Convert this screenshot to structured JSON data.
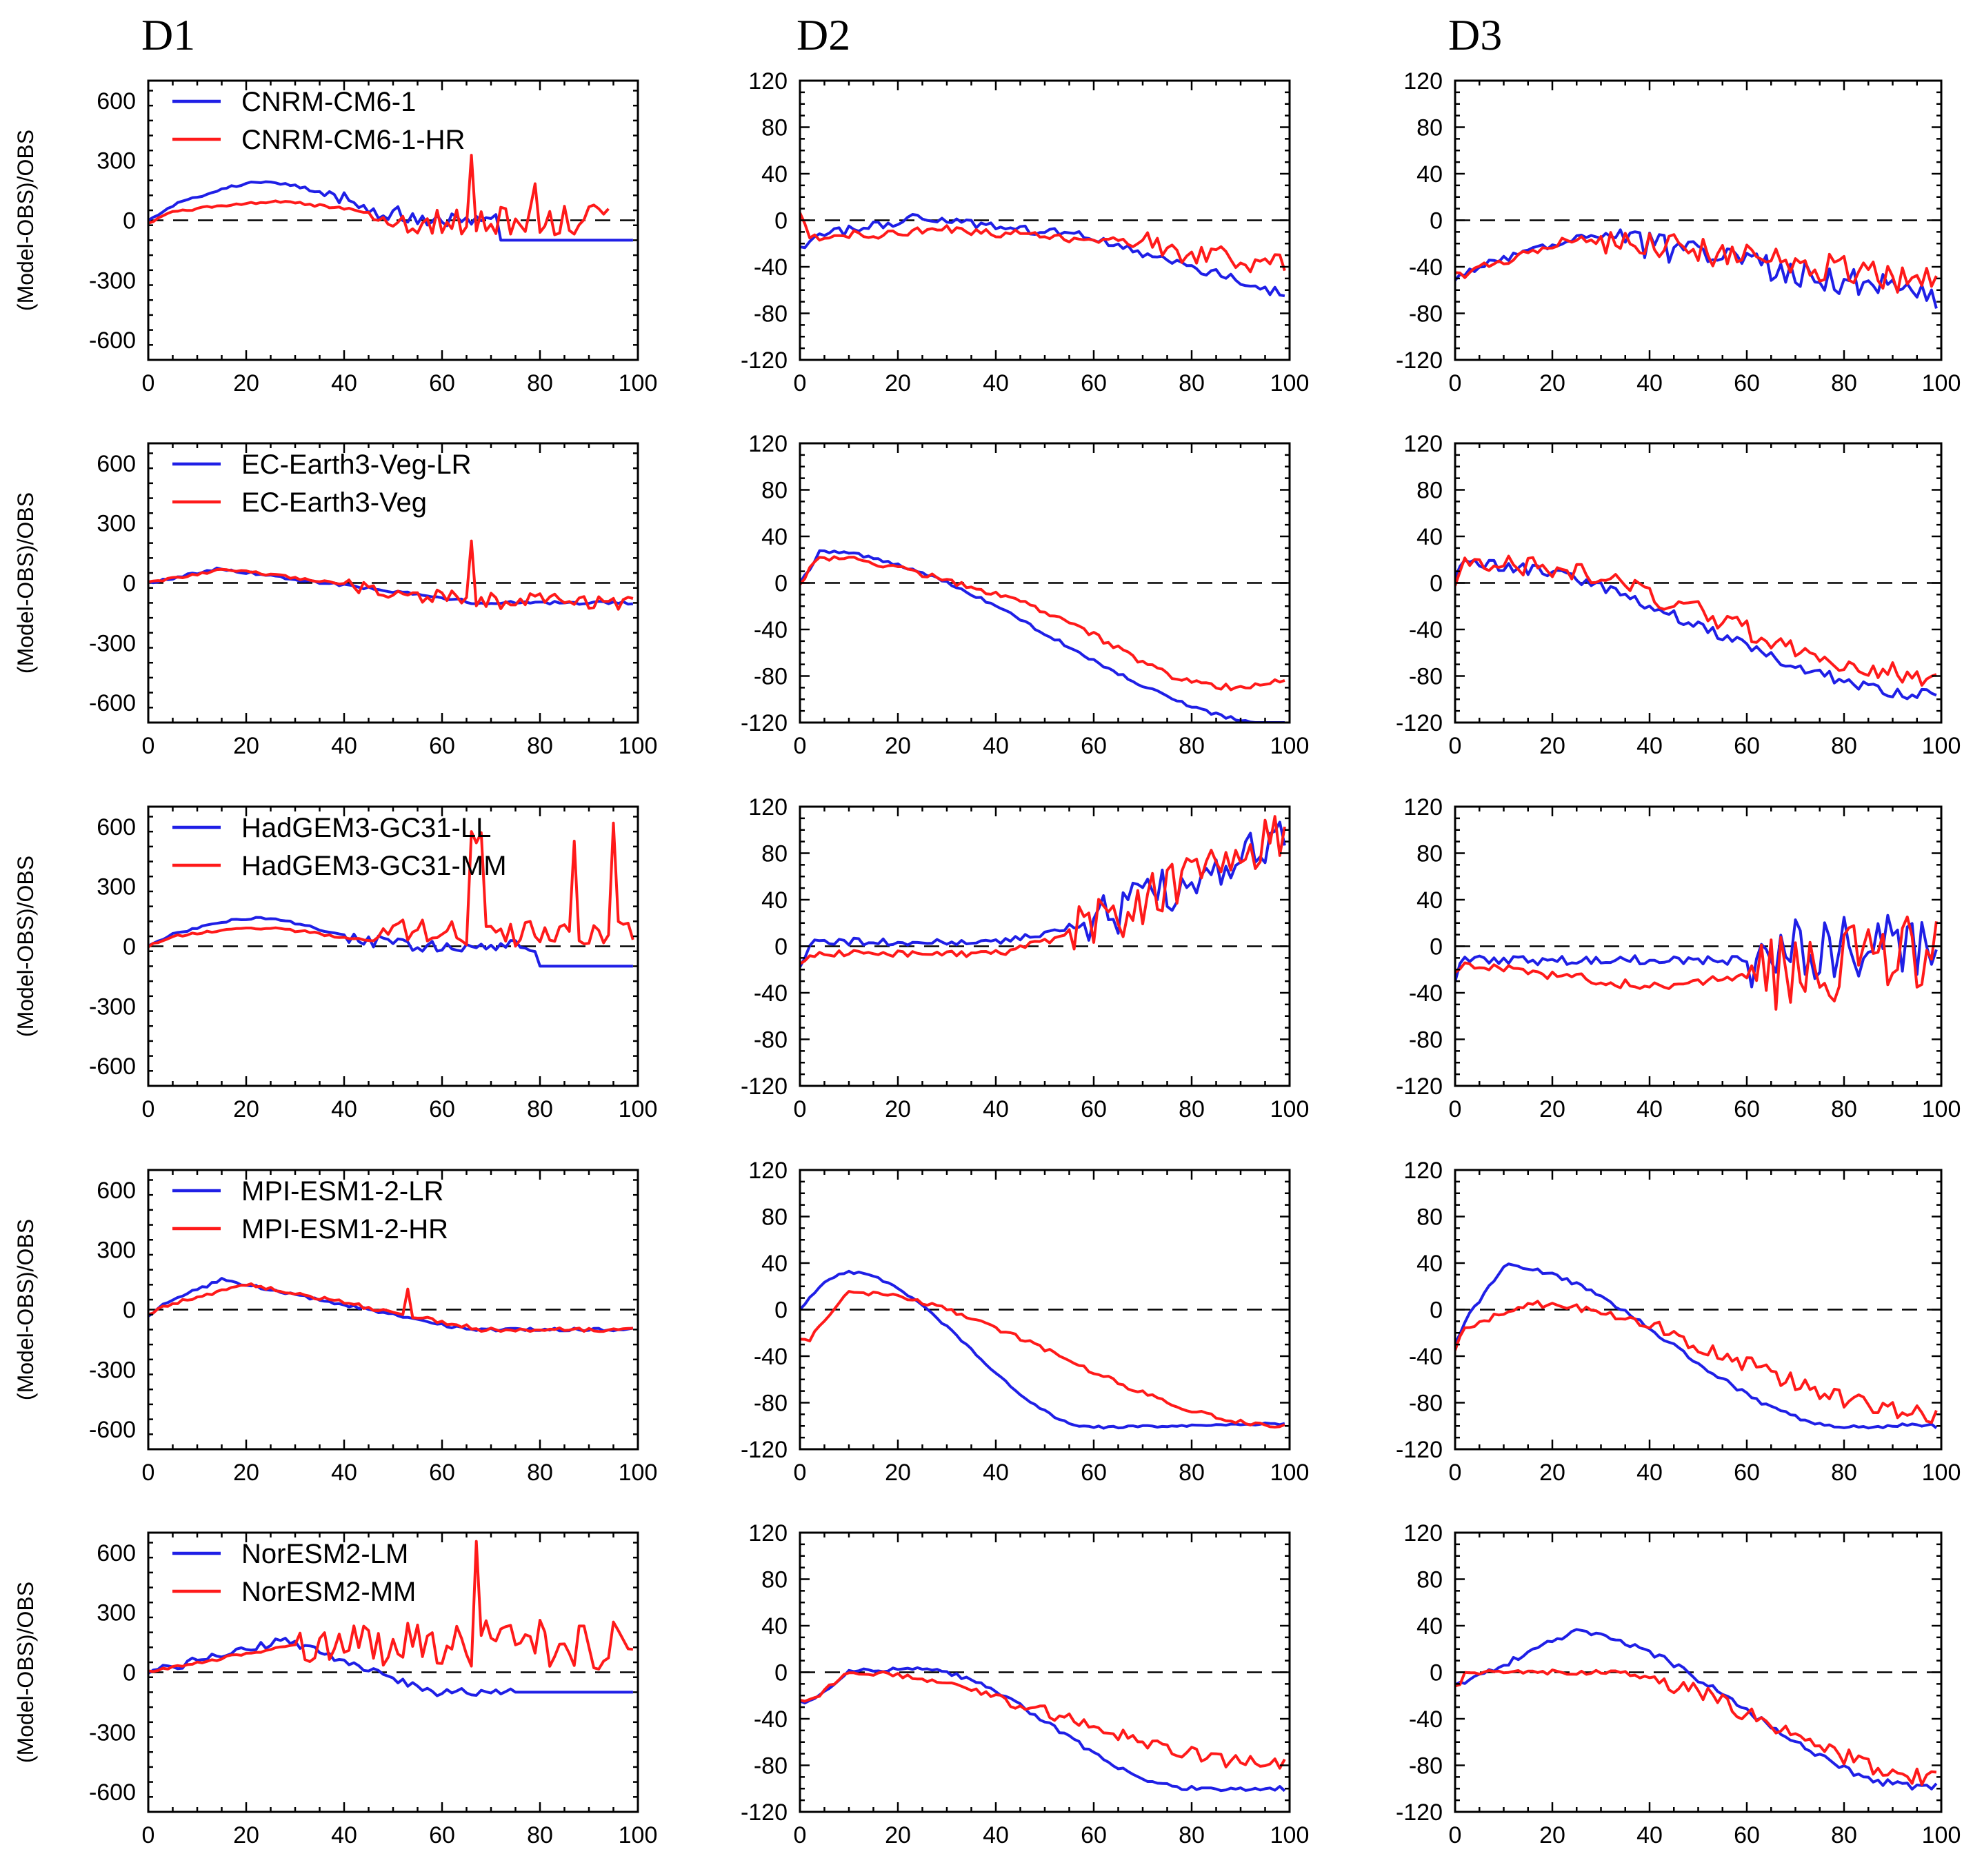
{
  "figure": {
    "columns": [
      "D1",
      "D2",
      "D3"
    ],
    "ylabel": "(Model-OBS)/OBS"
  },
  "colors": {
    "first_model": "#1f1fe6",
    "second_model": "#ff1a1a",
    "zero_line": "#000000"
  },
  "chart_data": [
    {
      "type": "line",
      "panel": "CNRM-CM6-1 D1",
      "column": "D1",
      "ylabel": "(Model-OBS)/OBS",
      "xlim": [
        0,
        100
      ],
      "ylim": [
        -700,
        700
      ],
      "xticks": [
        0,
        20,
        40,
        60,
        80,
        100
      ],
      "yticks": [
        -600,
        -300,
        0,
        300,
        600
      ],
      "legend": "top-left",
      "series": [
        {
          "name": "CNRM-CM6-1",
          "color": "blue",
          "shape": "sd1_cnrm",
          "amp": 1,
          "seed": 1
        },
        {
          "name": "CNRM-CM6-1-HR",
          "color": "red",
          "shape": "sd1_cnrm_hr",
          "amp": 1,
          "seed": 2
        }
      ]
    },
    {
      "type": "line",
      "panel": "CNRM-CM6-1 D2",
      "column": "D2",
      "xlim": [
        0,
        100
      ],
      "ylim": [
        -120,
        120
      ],
      "xticks": [
        0,
        20,
        40,
        60,
        80,
        100
      ],
      "yticks": [
        -120,
        -80,
        -40,
        0,
        40,
        80,
        120
      ],
      "series": [
        {
          "name": "CNRM-CM6-1",
          "color": "blue",
          "shape": "d2_cnrm_lr",
          "amp": 1,
          "seed": 3
        },
        {
          "name": "CNRM-CM6-1-HR",
          "color": "red",
          "shape": "d2_cnrm_hr",
          "amp": 1,
          "seed": 4
        }
      ]
    },
    {
      "type": "line",
      "panel": "CNRM-CM6-1 D3",
      "column": "D3",
      "xlim": [
        0,
        100
      ],
      "ylim": [
        -120,
        120
      ],
      "xticks": [
        0,
        20,
        40,
        60,
        80,
        100
      ],
      "yticks": [
        -120,
        -80,
        -40,
        0,
        40,
        80,
        120
      ],
      "series": [
        {
          "name": "CNRM-CM6-1",
          "color": "blue",
          "shape": "d3_cnrm_lr",
          "amp": 1,
          "seed": 5
        },
        {
          "name": "CNRM-CM6-1-HR",
          "color": "red",
          "shape": "d3_cnrm_hr",
          "amp": 1,
          "seed": 6
        }
      ]
    },
    {
      "type": "line",
      "panel": "EC-Earth3 D1",
      "column": "D1",
      "ylabel": "(Model-OBS)/OBS",
      "xlim": [
        0,
        100
      ],
      "ylim": [
        -700,
        700
      ],
      "xticks": [
        0,
        20,
        40,
        60,
        80,
        100
      ],
      "yticks": [
        -600,
        -300,
        0,
        300,
        600
      ],
      "legend": "top-left",
      "series": [
        {
          "name": "EC-Earth3-Veg-LR",
          "color": "blue",
          "shape": "sd1_ec_lr",
          "amp": 1,
          "seed": 7
        },
        {
          "name": "EC-Earth3-Veg",
          "color": "red",
          "shape": "sd1_ec_hr",
          "amp": 1,
          "seed": 8
        }
      ]
    },
    {
      "type": "line",
      "panel": "EC-Earth3 D2",
      "column": "D2",
      "xlim": [
        0,
        100
      ],
      "ylim": [
        -120,
        120
      ],
      "xticks": [
        0,
        20,
        40,
        60,
        80,
        100
      ],
      "yticks": [
        -120,
        -80,
        -40,
        0,
        40,
        80,
        120
      ],
      "series": [
        {
          "name": "EC-Earth3-Veg-LR",
          "color": "blue",
          "shape": "d2_ec_lr",
          "amp": 1,
          "seed": 9
        },
        {
          "name": "EC-Earth3-Veg",
          "color": "red",
          "shape": "d2_ec_hr",
          "amp": 1,
          "seed": 10
        }
      ]
    },
    {
      "type": "line",
      "panel": "EC-Earth3 D3",
      "column": "D3",
      "xlim": [
        0,
        100
      ],
      "ylim": [
        -120,
        120
      ],
      "xticks": [
        0,
        20,
        40,
        60,
        80,
        100
      ],
      "yticks": [
        -120,
        -80,
        -40,
        0,
        40,
        80,
        120
      ],
      "series": [
        {
          "name": "EC-Earth3-Veg-LR",
          "color": "blue",
          "shape": "d3_ec_lr",
          "amp": 1,
          "seed": 11
        },
        {
          "name": "EC-Earth3-Veg",
          "color": "red",
          "shape": "d3_ec_hr",
          "amp": 1,
          "seed": 12
        }
      ]
    },
    {
      "type": "line",
      "panel": "HadGEM3 D1",
      "column": "D1",
      "ylabel": "(Model-OBS)/OBS",
      "xlim": [
        0,
        100
      ],
      "ylim": [
        -700,
        700
      ],
      "xticks": [
        0,
        20,
        40,
        60,
        80,
        100
      ],
      "yticks": [
        -600,
        -300,
        0,
        300,
        600
      ],
      "legend": "top-left",
      "series": [
        {
          "name": "HadGEM3-GC31-LL",
          "color": "blue",
          "shape": "sd1_had_lr",
          "amp": 1,
          "seed": 13
        },
        {
          "name": "HadGEM3-GC31-MM",
          "color": "red",
          "shape": "sd1_had_hr",
          "amp": 1,
          "seed": 14
        }
      ]
    },
    {
      "type": "line",
      "panel": "HadGEM3 D2",
      "column": "D2",
      "xlim": [
        0,
        100
      ],
      "ylim": [
        -120,
        120
      ],
      "xticks": [
        0,
        20,
        40,
        60,
        80,
        100
      ],
      "yticks": [
        -120,
        -80,
        -40,
        0,
        40,
        80,
        120
      ],
      "series": [
        {
          "name": "HadGEM3-GC31-LL",
          "color": "blue",
          "shape": "d2_had_lr",
          "amp": 1,
          "seed": 15
        },
        {
          "name": "HadGEM3-GC31-MM",
          "color": "red",
          "shape": "d2_had_hr",
          "amp": 1,
          "seed": 16
        }
      ]
    },
    {
      "type": "line",
      "panel": "HadGEM3 D3",
      "column": "D3",
      "xlim": [
        0,
        100
      ],
      "ylim": [
        -120,
        120
      ],
      "xticks": [
        0,
        20,
        40,
        60,
        80,
        100
      ],
      "yticks": [
        -120,
        -80,
        -40,
        0,
        40,
        80,
        120
      ],
      "series": [
        {
          "name": "HadGEM3-GC31-LL",
          "color": "blue",
          "shape": "d3_had_lr",
          "amp": 1,
          "seed": 17
        },
        {
          "name": "HadGEM3-GC31-MM",
          "color": "red",
          "shape": "d3_had_hr",
          "amp": 1,
          "seed": 18
        }
      ]
    },
    {
      "type": "line",
      "panel": "MPI-ESM1-2 D1",
      "column": "D1",
      "ylabel": "(Model-OBS)/OBS",
      "xlim": [
        0,
        100
      ],
      "ylim": [
        -700,
        700
      ],
      "xticks": [
        0,
        20,
        40,
        60,
        80,
        100
      ],
      "yticks": [
        -600,
        -300,
        0,
        300,
        600
      ],
      "legend": "top-left",
      "series": [
        {
          "name": "MPI-ESM1-2-LR",
          "color": "blue",
          "shape": "sd1_mpi_lr",
          "amp": 1,
          "seed": 19
        },
        {
          "name": "MPI-ESM1-2-HR",
          "color": "red",
          "shape": "sd1_mpi_hr",
          "amp": 1,
          "seed": 20
        }
      ]
    },
    {
      "type": "line",
      "panel": "MPI-ESM1-2 D2",
      "column": "D2",
      "xlim": [
        0,
        100
      ],
      "ylim": [
        -120,
        120
      ],
      "xticks": [
        0,
        20,
        40,
        60,
        80,
        100
      ],
      "yticks": [
        -120,
        -80,
        -40,
        0,
        40,
        80,
        120
      ],
      "series": [
        {
          "name": "MPI-ESM1-2-LR",
          "color": "blue",
          "shape": "d2_mpi_lr",
          "amp": 1,
          "seed": 21
        },
        {
          "name": "MPI-ESM1-2-HR",
          "color": "red",
          "shape": "d2_mpi_hr",
          "amp": 1,
          "seed": 22
        }
      ]
    },
    {
      "type": "line",
      "panel": "MPI-ESM1-2 D3",
      "column": "D3",
      "xlim": [
        0,
        100
      ],
      "ylim": [
        -120,
        120
      ],
      "xticks": [
        0,
        20,
        40,
        60,
        80,
        100
      ],
      "yticks": [
        -120,
        -80,
        -40,
        0,
        40,
        80,
        120
      ],
      "series": [
        {
          "name": "MPI-ESM1-2-LR",
          "color": "blue",
          "shape": "d3_mpi_lr",
          "amp": 1,
          "seed": 23
        },
        {
          "name": "MPI-ESM1-2-HR",
          "color": "red",
          "shape": "d3_mpi_hr",
          "amp": 1,
          "seed": 24
        }
      ]
    },
    {
      "type": "line",
      "panel": "NorESM2 D1",
      "column": "D1",
      "ylabel": "(Model-OBS)/OBS",
      "xlim": [
        0,
        100
      ],
      "ylim": [
        -700,
        700
      ],
      "xticks": [
        0,
        20,
        40,
        60,
        80,
        100
      ],
      "yticks": [
        -600,
        -300,
        0,
        300,
        600
      ],
      "legend": "top-left",
      "series": [
        {
          "name": "NorESM2-LM",
          "color": "blue",
          "shape": "sd1_nor_lr",
          "amp": 1,
          "seed": 25
        },
        {
          "name": "NorESM2-MM",
          "color": "red",
          "shape": "sd1_nor_hr",
          "amp": 1,
          "seed": 26
        }
      ]
    },
    {
      "type": "line",
      "panel": "NorESM2 D2",
      "column": "D2",
      "xlim": [
        0,
        100
      ],
      "ylim": [
        -120,
        120
      ],
      "xticks": [
        0,
        20,
        40,
        60,
        80,
        100
      ],
      "yticks": [
        -120,
        -80,
        -40,
        0,
        40,
        80,
        120
      ],
      "series": [
        {
          "name": "NorESM2-LM",
          "color": "blue",
          "shape": "d2_nor_lr",
          "amp": 1,
          "seed": 27
        },
        {
          "name": "NorESM2-MM",
          "color": "red",
          "shape": "d2_nor_hr",
          "amp": 1,
          "seed": 28
        }
      ]
    },
    {
      "type": "line",
      "panel": "NorESM2 D3",
      "column": "D3",
      "xlim": [
        0,
        100
      ],
      "ylim": [
        -120,
        120
      ],
      "xticks": [
        0,
        20,
        40,
        60,
        80,
        100
      ],
      "yticks": [
        -120,
        -80,
        -40,
        0,
        40,
        80,
        120
      ],
      "series": [
        {
          "name": "NorESM2-LM",
          "color": "blue",
          "shape": "d3_nor_lr",
          "amp": 1,
          "seed": 29
        },
        {
          "name": "NorESM2-MM",
          "color": "red",
          "shape": "d3_nor_hr",
          "amp": 1,
          "seed": 30
        }
      ]
    }
  ]
}
